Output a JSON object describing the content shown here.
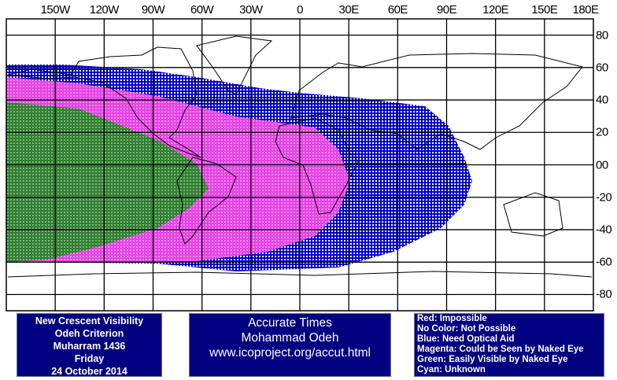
{
  "map": {
    "lon_labels": [
      "150W",
      "120W",
      "90W",
      "60W",
      "30W",
      "0",
      "30E",
      "60E",
      "90E",
      "120E",
      "150E",
      "180E"
    ],
    "lat_labels": [
      "80",
      "60",
      "40",
      "20",
      "00",
      "-20",
      "-40",
      "-60",
      "-80"
    ],
    "colors": {
      "blue": "#0000cc",
      "magenta": "#ff66ff",
      "green": "#2e8b2e",
      "grid": "#000000"
    }
  },
  "info_panel": {
    "lines": [
      "New Crescent Visibility",
      "Odeh Criterion",
      "Muharram 1436",
      "Friday",
      "24 October 2014"
    ]
  },
  "credit_panel": {
    "lines": [
      "Accurate Times",
      "Mohammad Odeh",
      "www.icoproject.org/accut.html"
    ]
  },
  "legend": {
    "items": [
      "Red: Impossible",
      "No Color: Not Possible",
      "Blue: Need Optical Aid",
      "Magenta: Could be Seen by Naked Eye",
      "Green: Easily Visible by Naked Eye",
      "Cyan: Unknown"
    ]
  },
  "panel_color": "#000080"
}
